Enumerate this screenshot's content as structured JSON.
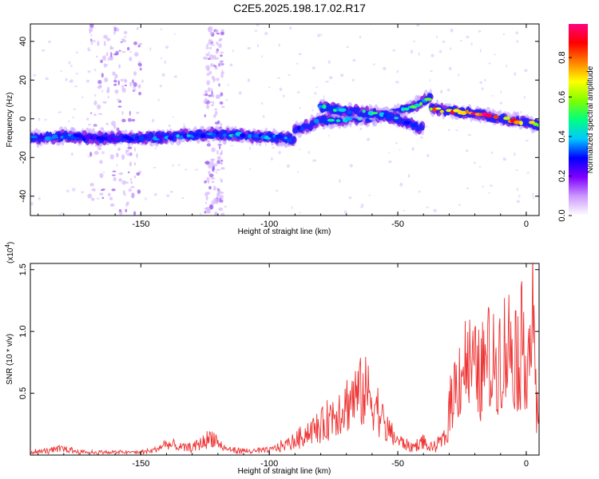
{
  "title": "C2E5.2025.198.17.02.R17",
  "chart_data": [
    {
      "type": "heatmap",
      "name": "spectrogram",
      "xlabel": "Height of straight line (km)",
      "ylabel": "Frequency (Hz)",
      "xlim": [
        -193,
        5
      ],
      "ylim": [
        -50,
        49
      ],
      "x_ticks": [
        -150,
        -100,
        -50,
        0
      ],
      "x_tick_labels": [
        "-150",
        "-100",
        "-50",
        "0"
      ],
      "y_ticks": [
        -40,
        -20,
        0,
        20,
        40
      ],
      "y_tick_labels": [
        "-40",
        "-20",
        "0",
        "20",
        "40"
      ],
      "colorbar": {
        "label": "Normalized spectral amplitude",
        "range": [
          0,
          0.97
        ],
        "ticks": [
          0.0,
          0.2,
          0.4,
          0.6,
          0.8
        ],
        "tick_labels": [
          "0.0",
          "0.2",
          "0.4",
          "0.6",
          "0.8"
        ],
        "colormap": [
          "#ffffff",
          "#cc99ff",
          "#8000ff",
          "#0000ff",
          "#00c8ff",
          "#00ff80",
          "#80ff00",
          "#ffff00",
          "#ff8000",
          "#ff0000",
          "#ff0080"
        ]
      },
      "ridges": [
        {
          "x": [
            -193,
            -180,
            -165,
            -150,
            -135,
            -120,
            -105,
            -95,
            -90
          ],
          "y": [
            -10,
            -9,
            -10,
            -10,
            -9,
            -8,
            -9,
            -10,
            -11
          ],
          "amplitude": [
            0.3,
            0.35,
            0.3,
            0.3,
            0.35,
            0.35,
            0.4,
            0.35,
            0.3
          ]
        },
        {
          "x": [
            -90,
            -80,
            -70,
            -60,
            -50,
            -45,
            -40,
            -37
          ],
          "y": [
            -6,
            -1,
            0,
            1,
            3,
            6,
            9,
            12
          ],
          "amplitude": [
            0.35,
            0.4,
            0.45,
            0.45,
            0.45,
            0.45,
            0.5,
            0.5
          ]
        },
        {
          "x": [
            -80,
            -70,
            -60,
            -50,
            -45,
            -40
          ],
          "y": [
            6,
            4,
            3,
            0,
            -3,
            -5
          ],
          "amplitude": [
            0.4,
            0.45,
            0.45,
            0.4,
            0.35,
            0.3
          ]
        },
        {
          "x": [
            -37,
            -30,
            -20,
            -10,
            0,
            5
          ],
          "y": [
            5,
            4,
            3,
            0,
            -2,
            -3
          ],
          "amplitude": [
            0.7,
            0.85,
            0.9,
            0.85,
            0.7,
            0.6
          ]
        }
      ],
      "background_noise_bands": [
        {
          "x_range": [
            -170,
            -150
          ],
          "amplitude": 0.1
        },
        {
          "x_range": [
            -125,
            -118
          ],
          "amplitude": 0.1
        }
      ]
    },
    {
      "type": "line",
      "name": "snr",
      "xlabel": "Height of straight line (km)",
      "ylabel": "SNR (10 * v/v)",
      "y_multiplier": "(x10",
      "y_multiplier_exp": "4",
      "xlim": [
        -193,
        5
      ],
      "ylim": [
        0,
        1.55
      ],
      "x_ticks": [
        -150,
        -100,
        -50,
        0
      ],
      "x_tick_labels": [
        "-150",
        "-100",
        "-50",
        "0"
      ],
      "y_ticks": [
        0.5,
        1.0,
        1.5
      ],
      "y_tick_labels": [
        "0.5",
        "1.0",
        "1.5"
      ],
      "series": [
        {
          "color": "#ee3333",
          "x": [
            -193,
            -185,
            -180,
            -175,
            -170,
            -160,
            -150,
            -145,
            -140,
            -135,
            -130,
            -125,
            -122,
            -118,
            -110,
            -100,
            -95,
            -90,
            -85,
            -80,
            -75,
            -70,
            -67,
            -63,
            -60,
            -57,
            -55,
            -52,
            -50,
            -47,
            -45,
            -42,
            -40,
            -38,
            -35,
            -33,
            -31,
            -30,
            -29,
            -27,
            -25,
            -23,
            -20,
            -18,
            -15,
            -13,
            -10,
            -8,
            -5,
            -3,
            -1,
            1,
            2,
            3,
            4,
            5
          ],
          "y": [
            0.03,
            0.05,
            0.07,
            0.04,
            0.03,
            0.03,
            0.03,
            0.05,
            0.12,
            0.08,
            0.08,
            0.15,
            0.2,
            0.07,
            0.04,
            0.05,
            0.1,
            0.15,
            0.25,
            0.3,
            0.45,
            0.55,
            0.62,
            0.68,
            0.62,
            0.45,
            0.3,
            0.22,
            0.15,
            0.12,
            0.08,
            0.12,
            0.15,
            0.07,
            0.1,
            0.15,
            0.2,
            0.5,
            0.6,
            0.8,
            0.95,
            1.0,
            0.9,
            0.85,
            1.05,
            0.95,
            1.1,
            1.15,
            1.2,
            1.05,
            1.25,
            1.1,
            1.55,
            1.3,
            0.4,
            0.55
          ]
        }
      ]
    }
  ]
}
